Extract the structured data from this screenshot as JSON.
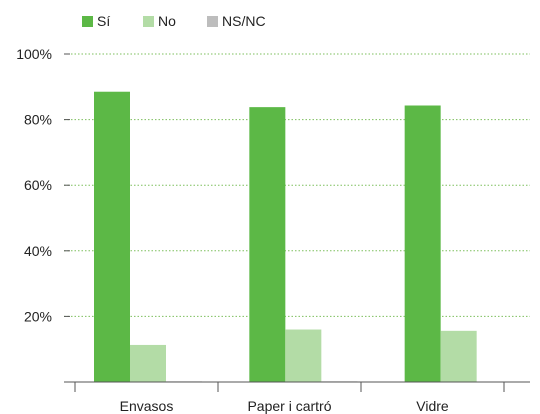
{
  "chart_data": {
    "type": "bar",
    "title": "",
    "xlabel": "",
    "ylabel": "",
    "categories": [
      "Envasos",
      "Paper i cartró",
      "Vidre"
    ],
    "series": [
      {
        "name": "Sí",
        "color": "#5cb846",
        "values": [
          88.5,
          83.8,
          84.3
        ]
      },
      {
        "name": "No",
        "color": "#b3dca6",
        "values": [
          11.3,
          16.0,
          15.6
        ]
      },
      {
        "name": "NS/NC",
        "color": "#bdbdbd",
        "values": [
          0.2,
          0.2,
          0.1
        ]
      }
    ],
    "ylim": [
      0,
      100
    ],
    "yticks": [
      20,
      40,
      60,
      80,
      100
    ],
    "ytick_labels": [
      "20%",
      "40%",
      "60%",
      "80%",
      "100%"
    ],
    "grid": true,
    "grid_color": "#7dbf5d",
    "legend_position": "top-left"
  }
}
